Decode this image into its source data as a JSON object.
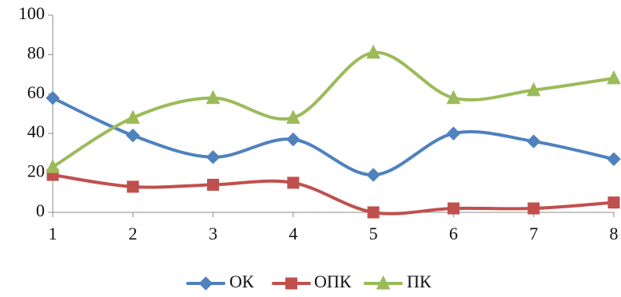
{
  "chart_data": {
    "type": "line",
    "title": "",
    "xlabel": "",
    "ylabel": "",
    "x": [
      1,
      2,
      3,
      4,
      5,
      6,
      7,
      8
    ],
    "x_tick_labels": [
      "1",
      "2",
      "3",
      "4",
      "5",
      "6",
      "7",
      "8"
    ],
    "ylim": [
      0,
      100
    ],
    "y_ticks": [
      0,
      20,
      40,
      60,
      80,
      100
    ],
    "y_tick_labels": [
      "0",
      "20",
      "40",
      "60",
      "80",
      "100"
    ],
    "grid": false,
    "smooth_lines": true,
    "legend_position": "bottom",
    "series": [
      {
        "name": "ОК",
        "color": "#4f81bd",
        "marker": "diamond",
        "values": [
          58,
          39,
          28,
          37,
          19,
          40,
          36,
          27
        ]
      },
      {
        "name": "ОПК",
        "color": "#c0504d",
        "marker": "square",
        "values": [
          19,
          13,
          14,
          15,
          0,
          2,
          2,
          5
        ]
      },
      {
        "name": "ПК",
        "color": "#9bbb59",
        "marker": "triangle",
        "values": [
          23,
          48,
          58,
          48,
          81,
          58,
          62,
          68
        ]
      }
    ]
  }
}
